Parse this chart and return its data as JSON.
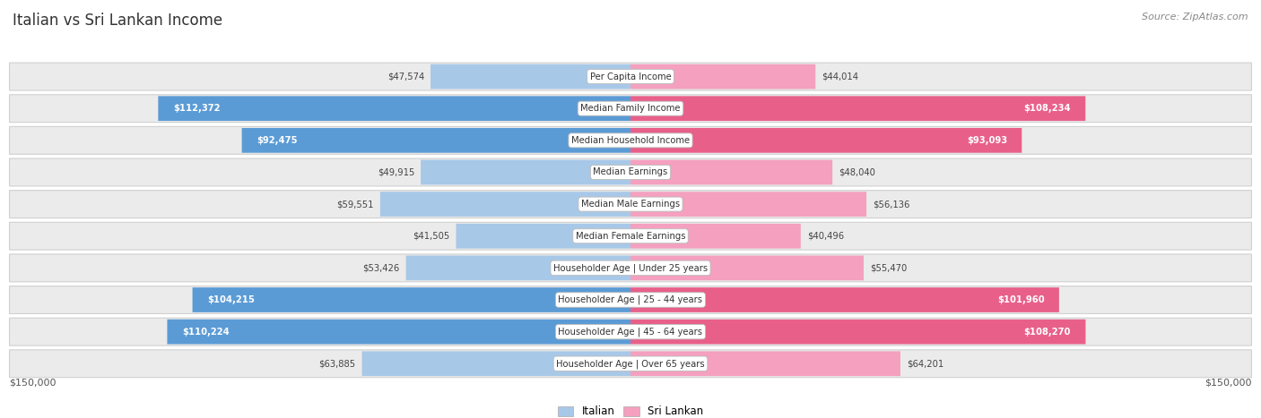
{
  "title": "Italian vs Sri Lankan Income",
  "source": "Source: ZipAtlas.com",
  "categories": [
    "Per Capita Income",
    "Median Family Income",
    "Median Household Income",
    "Median Earnings",
    "Median Male Earnings",
    "Median Female Earnings",
    "Householder Age | Under 25 years",
    "Householder Age | 25 - 44 years",
    "Householder Age | 45 - 64 years",
    "Householder Age | Over 65 years"
  ],
  "italian_values": [
    47574,
    112372,
    92475,
    49915,
    59551,
    41505,
    53426,
    104215,
    110224,
    63885
  ],
  "srilanka_values": [
    44014,
    108234,
    93093,
    48040,
    56136,
    40496,
    55470,
    101960,
    108270,
    64201
  ],
  "italian_labels": [
    "$47,574",
    "$112,372",
    "$92,475",
    "$49,915",
    "$59,551",
    "$41,505",
    "$53,426",
    "$104,215",
    "$110,224",
    "$63,885"
  ],
  "srilanka_labels": [
    "$44,014",
    "$108,234",
    "$93,093",
    "$48,040",
    "$56,136",
    "$40,496",
    "$55,470",
    "$101,960",
    "$108,270",
    "$64,201"
  ],
  "italian_color_light": "#a8c8e8",
  "italian_color_dark": "#5b9bd5",
  "srilanka_color_light": "#f4a0be",
  "srilanka_color_dark": "#e8608a",
  "max_value": 150000,
  "bg_row_color": "#ebebeb",
  "bg_row_border": "#d0d0d0",
  "bg_color": "#ffffff",
  "legend_italian": "Italian",
  "legend_srilanka": "Sri Lankan",
  "bottom_label_left": "$150,000",
  "bottom_label_right": "$150,000",
  "threshold_dark": 75000
}
